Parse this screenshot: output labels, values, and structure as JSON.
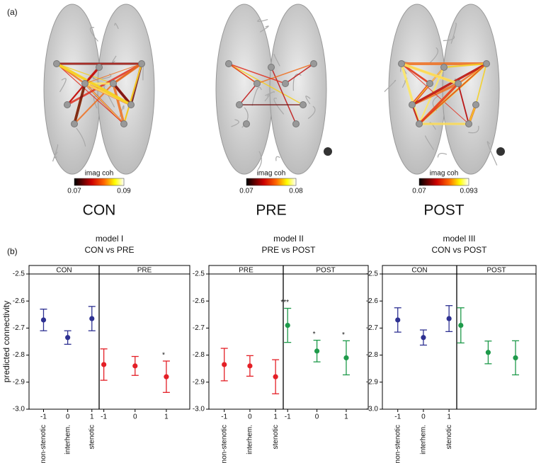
{
  "panel_a_label": "(a)",
  "panel_b_label": "(b)",
  "brains": [
    {
      "label": "CON",
      "colorbar_title": "imag coh",
      "colorbar_ticks": [
        0.07,
        0.09
      ]
    },
    {
      "label": "PRE",
      "colorbar_title": "imag coh",
      "colorbar_ticks": [
        0.07,
        0.08
      ]
    },
    {
      "label": "POST",
      "colorbar_title": "imag coh",
      "colorbar_ticks": [
        0.07,
        0.093
      ]
    }
  ],
  "chart_data": [
    {
      "type": "errorbar",
      "title": "model I",
      "subtitle": "CON vs PRE",
      "ylabel": "predicted connectivity",
      "ylim": [
        -3.0,
        -2.5
      ],
      "yticks": [
        -2.5,
        -2.6,
        -2.7,
        -2.8,
        -2.9,
        {
          "value": -3.0,
          "label": "-3.0"
        }
      ],
      "xlabels": [
        "non-stenotic",
        "interhem.",
        "stenotic"
      ],
      "series": [
        {
          "name": "CON",
          "color": "#2e3192",
          "xlim": [
            -1.6,
            1.3
          ],
          "x": [
            -1,
            0,
            1
          ],
          "xticks": [
            -1,
            0,
            1
          ],
          "values": [
            -2.67,
            -2.735,
            -2.665
          ],
          "errors": [
            0.04,
            0.025,
            0.045
          ],
          "annotations": [
            null,
            null,
            null
          ]
        },
        {
          "name": "PRE",
          "color": "#e41f26",
          "xlim": [
            -1.15,
            1.75
          ],
          "x": [
            -1,
            0,
            1
          ],
          "xticks": [
            -1,
            0,
            1
          ],
          "values": [
            -2.835,
            -2.84,
            -2.88
          ],
          "errors": [
            0.058,
            0.035,
            0.058
          ],
          "annotations": [
            null,
            null,
            "*"
          ]
        }
      ]
    },
    {
      "type": "errorbar",
      "title": "model II",
      "subtitle": "PRE vs POST",
      "ylim": [
        -3.0,
        -2.5
      ],
      "yticks": [
        -2.5,
        -2.6,
        -2.7,
        -2.8,
        -2.9,
        {
          "value": -3.0,
          "label": "-3.0"
        }
      ],
      "xlabels": [
        "non-stenotic",
        "interhem.",
        "stenotic"
      ],
      "series": [
        {
          "name": "PRE",
          "color": "#e41f26",
          "xlim": [
            -1.6,
            1.3
          ],
          "x": [
            -1,
            0,
            1
          ],
          "xticks": [
            -1,
            0,
            1
          ],
          "values": [
            -2.835,
            -2.84,
            -2.88
          ],
          "errors": [
            0.06,
            0.038,
            0.063
          ],
          "annotations": [
            null,
            null,
            null
          ]
        },
        {
          "name": "POST",
          "color": "#1e9a4a",
          "xlim": [
            -1.15,
            1.75
          ],
          "x": [
            -1,
            0,
            1
          ],
          "xticks": [
            -1,
            0,
            1
          ],
          "values": [
            -2.69,
            -2.785,
            -2.81
          ],
          "errors": [
            0.063,
            0.04,
            0.063
          ],
          "annotations": [
            "***",
            "*",
            "*"
          ]
        }
      ]
    },
    {
      "type": "errorbar",
      "title": "model III",
      "subtitle": "CON vs POST",
      "ylim": [
        -3.0,
        -2.5
      ],
      "yticks": [
        -2.5,
        -2.6,
        -2.7,
        -2.8,
        -2.9,
        {
          "value": -3.0,
          "label": "-3.0"
        }
      ],
      "xlabels": [
        "non-stenotic",
        "interhem.",
        "stenotic"
      ],
      "series": [
        {
          "name": "CON",
          "color": "#2e3192",
          "xlim": [
            -1.6,
            1.3
          ],
          "x": [
            -1,
            0,
            1
          ],
          "xticks": [
            -1,
            0,
            1
          ],
          "values": [
            -2.67,
            -2.735,
            -2.665
          ],
          "errors": [
            0.045,
            0.028,
            0.048
          ],
          "annotations": [
            null,
            null,
            null
          ]
        },
        {
          "name": "POST",
          "color": "#1e9a4a",
          "xlim": [
            -1.15,
            1.75
          ],
          "x": [
            -1,
            0,
            1
          ],
          "xticks": [],
          "values": [
            -2.69,
            -2.79,
            -2.81
          ],
          "errors": [
            0.065,
            0.042,
            0.063
          ],
          "annotations": [
            null,
            null,
            null
          ]
        }
      ]
    }
  ]
}
